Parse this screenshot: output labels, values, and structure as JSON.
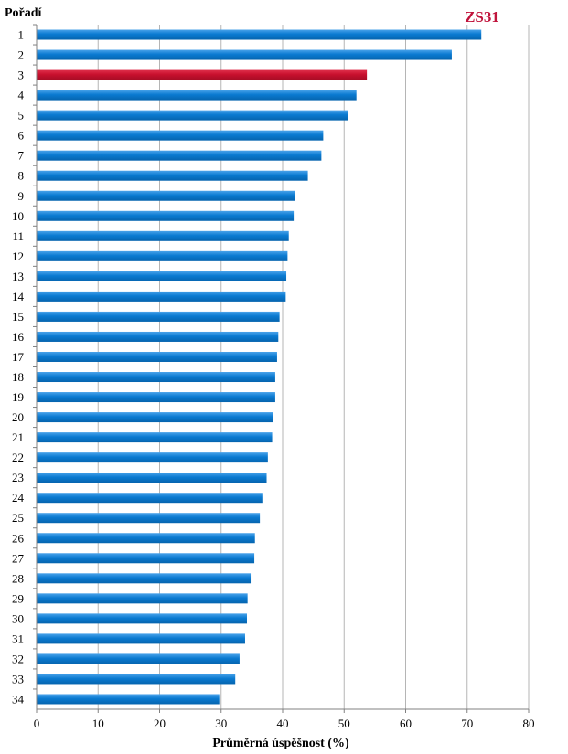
{
  "chart_data": {
    "type": "bar",
    "orientation": "horizontal",
    "categories": [
      "1",
      "2",
      "3",
      "4",
      "5",
      "6",
      "7",
      "8",
      "9",
      "10",
      "11",
      "12",
      "13",
      "14",
      "15",
      "16",
      "17",
      "18",
      "19",
      "20",
      "21",
      "22",
      "23",
      "24",
      "25",
      "26",
      "27",
      "28",
      "29",
      "30",
      "31",
      "32",
      "33",
      "34"
    ],
    "values": [
      72.3,
      67.5,
      53.7,
      52.0,
      50.7,
      46.6,
      46.3,
      44.1,
      42.0,
      41.8,
      41.0,
      40.8,
      40.6,
      40.5,
      39.5,
      39.3,
      39.1,
      38.8,
      38.8,
      38.4,
      38.3,
      37.6,
      37.4,
      36.7,
      36.3,
      35.5,
      35.4,
      34.8,
      34.3,
      34.2,
      33.9,
      33.0,
      32.3,
      29.7
    ],
    "highlight_index": 2,
    "highlight_label": "ZS31",
    "xlabel": "Průměrná úspěšnost (%)",
    "ylabel": "Pořadí",
    "xlim": [
      0,
      80
    ],
    "xticks": [
      0,
      10,
      20,
      30,
      40,
      50,
      60,
      70,
      80
    ],
    "grid": "vertical",
    "colors": {
      "bar": "#0a7ad1",
      "bar_highlight": "#c8102e",
      "callout": "#c0143c",
      "grid": "#b5b5b5",
      "axis": "#808080"
    }
  }
}
